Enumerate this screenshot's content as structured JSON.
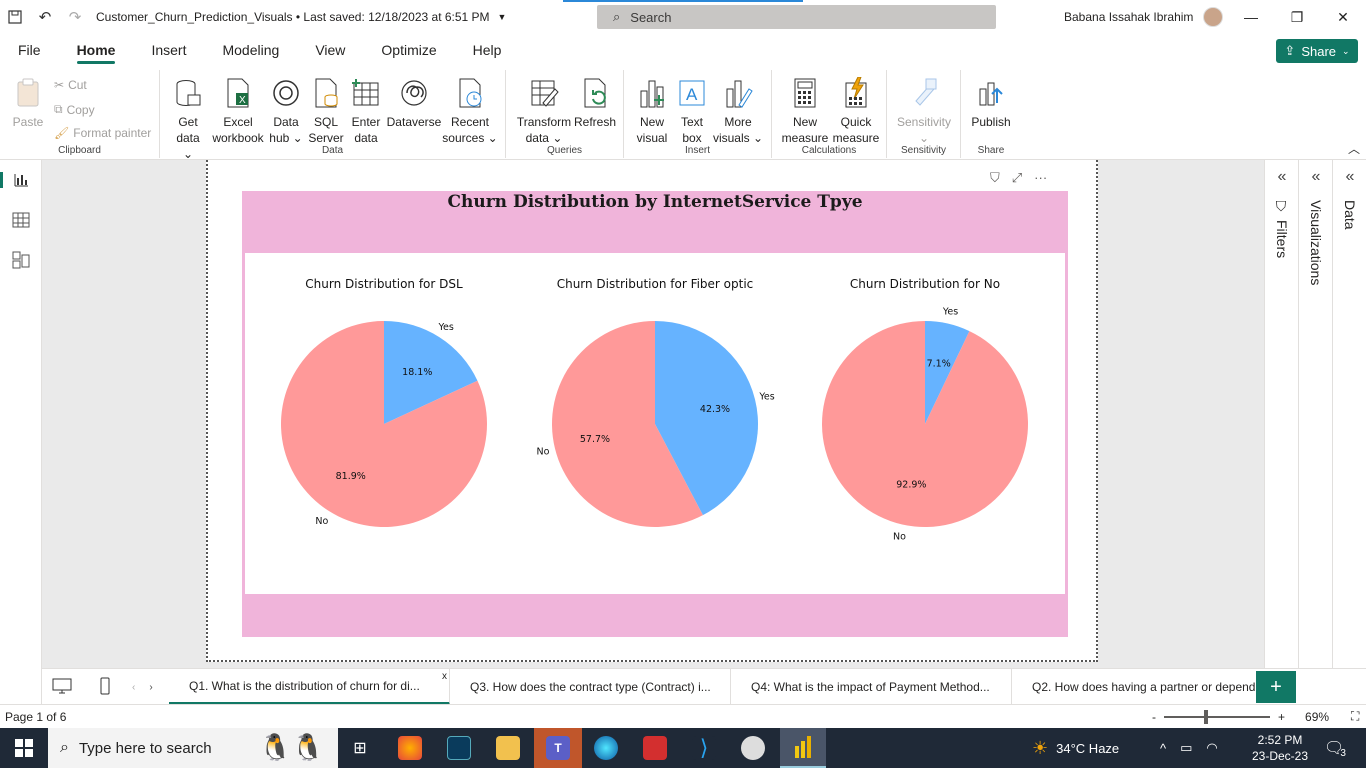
{
  "titlebar": {
    "doc_title": "Customer_Churn_Prediction_Visuals • Last saved: 12/18/2023 at 6:51 PM",
    "search_placeholder": "Search",
    "user_name": "Babana Issahak Ibrahim"
  },
  "menu": {
    "items": [
      "File",
      "Home",
      "Insert",
      "Modeling",
      "View",
      "Optimize",
      "Help"
    ],
    "active": "Home",
    "share_label": "Share"
  },
  "ribbon": {
    "clipboard": {
      "paste": "Paste",
      "cut": "Cut",
      "copy": "Copy",
      "format_painter": "Format painter",
      "label": "Clipboard"
    },
    "data": {
      "label": "Data",
      "buttons": [
        {
          "l1": "Get",
          "l2": "data ⌄"
        },
        {
          "l1": "Excel",
          "l2": "workbook"
        },
        {
          "l1": "Data",
          "l2": "hub ⌄"
        },
        {
          "l1": "SQL",
          "l2": "Server"
        },
        {
          "l1": "Enter",
          "l2": "data"
        },
        {
          "l1": "Dataverse",
          "l2": ""
        },
        {
          "l1": "Recent",
          "l2": "sources ⌄"
        }
      ]
    },
    "queries": {
      "label": "Queries",
      "transform_l1": "Transform",
      "transform_l2": "data ⌄",
      "refresh": "Refresh"
    },
    "insert": {
      "label": "Insert",
      "new_visual_l1": "New",
      "new_visual_l2": "visual",
      "text_box_l1": "Text",
      "text_box_l2": "box",
      "more_visuals_l1": "More",
      "more_visuals_l2": "visuals ⌄"
    },
    "calculations": {
      "label": "Calculations",
      "new_measure_l1": "New",
      "new_measure_l2": "measure",
      "quick_measure_l1": "Quick",
      "quick_measure_l2": "measure"
    },
    "sensitivity": {
      "label": "Sensitivity",
      "button": "Sensitivity",
      "caret": "⌄"
    },
    "share": {
      "label": "Share",
      "publish": "Publish"
    }
  },
  "visual": {
    "title": "Churn Distribution by InternetService Tpye"
  },
  "chart_data": [
    {
      "type": "pie",
      "title": "Churn Distribution for DSL",
      "categories": [
        "Yes",
        "No"
      ],
      "values": [
        18.1,
        81.9
      ],
      "value_labels": [
        "18.1%",
        "81.9%"
      ],
      "colors": [
        "#66b3ff",
        "#ff9999"
      ]
    },
    {
      "type": "pie",
      "title": "Churn Distribution for Fiber optic",
      "categories": [
        "Yes",
        "No"
      ],
      "values": [
        42.3,
        57.7
      ],
      "value_labels": [
        "42.3%",
        "57.7%"
      ],
      "colors": [
        "#66b3ff",
        "#ff9999"
      ]
    },
    {
      "type": "pie",
      "title": "Churn Distribution for No",
      "categories": [
        "Yes",
        "No"
      ],
      "values": [
        7.1,
        92.9
      ],
      "value_labels": [
        "7.1%",
        "92.9%"
      ],
      "colors": [
        "#66b3ff",
        "#ff9999"
      ]
    }
  ],
  "panes": {
    "filters": "Filters",
    "visualizations": "Visualizations",
    "data": "Data"
  },
  "tabs": [
    "Q1. What is the distribution of churn for di...",
    "Q3. How does the contract type (Contract) i...",
    "Q4: What is the impact of Payment Method...",
    "Q2. How does having a partner or depende..."
  ],
  "status": {
    "page": "Page 1 of 6",
    "zoom": "69%"
  },
  "taskbar": {
    "search_placeholder": "Type here to search",
    "weather": "34°C  Haze",
    "time": "2:52 PM",
    "date": "23-Dec-23",
    "notifications": "3"
  },
  "colors": {
    "accent": "#117865",
    "visual_bg": "#f0b4da",
    "pie_yes": "#66b3ff",
    "pie_no": "#ff9999"
  }
}
